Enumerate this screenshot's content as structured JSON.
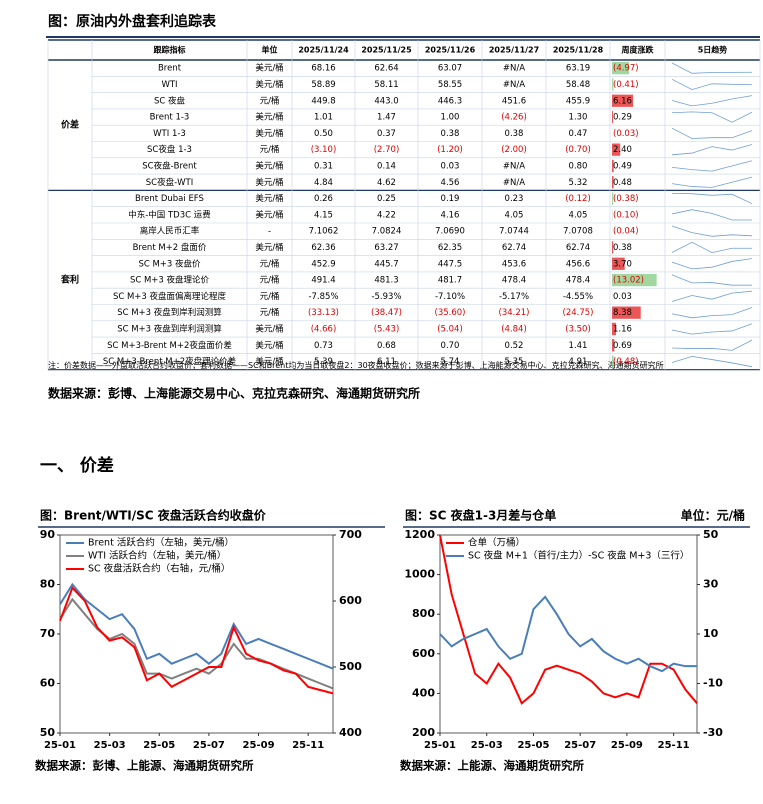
{
  "title": "图：原油内外盘套利追踪表",
  "table": {
    "headers": [
      "跟踪指标",
      "单位",
      "2025/11/24",
      "2025/11/25",
      "2025/11/26",
      "2025/11/27",
      "2025/11/28",
      "周度涨跌",
      "5日趋势"
    ],
    "groups": [
      {
        "name": "价差",
        "rows": [
          [
            "Brent",
            "美元/桶",
            "68.16",
            "62.64",
            "63.07",
            "#N/A",
            "63.19",
            "(4.97)"
          ],
          [
            "WTI",
            "美元/桶",
            "58.89",
            "58.11",
            "58.55",
            "#N/A",
            "58.48",
            "(0.41)"
          ],
          [
            "SC 夜盘",
            "元/桶",
            "449.8",
            "443.0",
            "446.3",
            "451.6",
            "455.9",
            "6.16"
          ],
          [
            "Brent 1-3",
            "美元/桶",
            "1.01",
            "1.47",
            "1.00",
            "(4.26)",
            "1.30",
            "0.29"
          ],
          [
            "WTI 1-3",
            "美元/桶",
            "0.50",
            "0.37",
            "0.38",
            "0.38",
            "0.47",
            "(0.03)"
          ],
          [
            "SC夜盘 1-3",
            "元/桶",
            "(3.10)",
            "(2.70)",
            "(1.20)",
            "(2.00)",
            "(0.70)",
            "2.40"
          ],
          [
            "SC夜盘-Brent",
            "美元/桶",
            "0.31",
            "0.14",
            "0.03",
            "#N/A",
            "0.80",
            "0.49"
          ],
          [
            "SC夜盘-WTI",
            "美元/桶",
            "4.84",
            "4.62",
            "4.56",
            "#N/A",
            "5.32",
            "0.48"
          ]
        ]
      },
      {
        "name": "套利",
        "rows": [
          [
            "Brent Dubai EFS",
            "美元/桶",
            "0.26",
            "0.25",
            "0.19",
            "0.23",
            "(0.12)",
            "(0.38)"
          ],
          [
            "中东-中国 TD3C 运费",
            "美元/桶",
            "4.15",
            "4.22",
            "4.16",
            "4.05",
            "4.05",
            "(0.10)"
          ],
          [
            "离岸人民币汇率",
            "-",
            "7.1062",
            "7.0824",
            "7.0690",
            "7.0744",
            "7.0708",
            "(0.04)"
          ],
          [
            "Brent M+2 盘面价",
            "美元/桶",
            "62.36",
            "63.27",
            "62.35",
            "62.74",
            "62.74",
            "0.38"
          ],
          [
            "SC M+3 夜盘价",
            "元/桶",
            "452.9",
            "445.7",
            "447.5",
            "453.6",
            "456.6",
            "3.70"
          ],
          [
            "SC M+3 夜盘理论价",
            "元/桶",
            "491.4",
            "481.3",
            "481.7",
            "478.4",
            "478.4",
            "(13.02)"
          ],
          [
            "SC M+3 夜盘面偏离理论程度",
            "元/桶",
            "-7.85%",
            "-5.93%",
            "-7.10%",
            "-5.17%",
            "-4.55%",
            "0.03"
          ],
          [
            "SC M+3 夜盘到岸利润测算",
            "元/桶",
            "(33.13)",
            "(38.47)",
            "(35.60)",
            "(34.21)",
            "(24.75)",
            "8.38"
          ],
          [
            "SC M+3 夜盘到岸利润测算",
            "美元/桶",
            "(4.66)",
            "(5.43)",
            "(5.04)",
            "(4.84)",
            "(3.50)",
            "1.16"
          ],
          [
            "SC M+3-Brent M+2夜盘面价差",
            "美元/桶",
            "0.73",
            "0.68",
            "0.70",
            "0.52",
            "1.41",
            "0.69"
          ],
          [
            "SC M+3-Brent M+2夜盘理论价差",
            "美元/桶",
            "5.39",
            "6.11",
            "5.74",
            "5.35",
            "4.91",
            "(0.48)"
          ]
        ]
      }
    ]
  },
  "note": "注：价差数据——外盘取活跃合约收盘价；套利数据——SC和Brent均为当日取夜盘2：30夜盘收盘价；数据来源于彭博、上海能源交易中心、克拉克森研究、海通期货研究所",
  "source": "数据来源：彭博、上海能源交易中心、克拉克森研究、海通期货研究所",
  "section": "一、 价差",
  "chart_data": [
    {
      "type": "line",
      "title": "图：Brent/WTI/SC 夜盘活跃合约收盘价",
      "x": [
        1,
        1.5,
        2,
        2.5,
        3,
        3.5,
        4,
        4.5,
        5,
        5.5,
        6,
        6.5,
        7,
        7.5,
        8,
        8.5,
        9,
        9.5,
        10,
        10.5,
        11,
        11.5,
        12
      ],
      "xlim": [
        1,
        12
      ],
      "xticks": [
        {
          "value": 1,
          "label": "25-01"
        },
        {
          "value": 3,
          "label": "25-03"
        },
        {
          "value": 5,
          "label": "25-05"
        },
        {
          "value": 7,
          "label": "25-07"
        },
        {
          "value": 9,
          "label": "25-09"
        },
        {
          "value": 11,
          "label": "25-11"
        }
      ],
      "ylim": [
        50,
        90
      ],
      "yticks": [
        50,
        60,
        70,
        80,
        90
      ],
      "y2lim": [
        400,
        700
      ],
      "y2ticks": [
        400,
        500,
        600,
        700
      ],
      "series": [
        {
          "name": "Brent 活跃合约（左轴，美元/桶）",
          "color": "#4a7ebb",
          "values": [
            76,
            80,
            77,
            75,
            73,
            74,
            71,
            65,
            66,
            64,
            65,
            66,
            64,
            66,
            72,
            68,
            69,
            68,
            67,
            66,
            65,
            64,
            63
          ]
        },
        {
          "name": "WTI 活跃合约（左轴，美元/桶）",
          "color": "#808080",
          "values": [
            73,
            77,
            74,
            71,
            69,
            70,
            68,
            62,
            62,
            61,
            62,
            63,
            62,
            64,
            68,
            65,
            65,
            64,
            63,
            62,
            61,
            60,
            59
          ]
        },
        {
          "name": "SC 夜盘活跃合约（右轴，元/桶）",
          "color": "#ff0000",
          "axis": "y2",
          "values": [
            570,
            620,
            600,
            560,
            540,
            545,
            530,
            480,
            490,
            470,
            480,
            490,
            500,
            500,
            560,
            520,
            510,
            505,
            495,
            490,
            470,
            465,
            460
          ]
        }
      ],
      "source": "数据来源：彭博、上能源、海通期货研究所"
    },
    {
      "type": "line",
      "title": "图：SC 夜盘1-3月差与仓单",
      "subtitle": "单位：元/桶",
      "x": [
        1,
        1.5,
        2,
        2.5,
        3,
        3.5,
        4,
        4.5,
        5,
        5.5,
        6,
        6.5,
        7,
        7.5,
        8,
        8.5,
        9,
        9.5,
        10,
        10.5,
        11,
        11.5,
        12
      ],
      "xlim": [
        1,
        12
      ],
      "xticks": [
        {
          "value": 1,
          "label": "25-01"
        },
        {
          "value": 3,
          "label": "25-03"
        },
        {
          "value": 5,
          "label": "25-05"
        },
        {
          "value": 7,
          "label": "25-07"
        },
        {
          "value": 9,
          "label": "25-09"
        },
        {
          "value": 11,
          "label": "25-11"
        }
      ],
      "ylim": [
        200,
        1200
      ],
      "yticks": [
        200,
        400,
        600,
        800,
        1000,
        1200
      ],
      "y2lim": [
        -30,
        50
      ],
      "y2ticks": [
        -30,
        -10,
        10,
        30,
        50
      ],
      "series": [
        {
          "name": "仓单（万桶）",
          "color": "#ff0000",
          "values": [
            1200,
            900,
            700,
            500,
            450,
            550,
            480,
            350,
            400,
            520,
            540,
            520,
            500,
            460,
            400,
            380,
            400,
            380,
            550,
            550,
            520,
            420,
            350
          ]
        },
        {
          "name": "SC 夜盘 M+1（首行/主力）-SC 夜盘 M+3（三行）",
          "color": "#4a7ebb",
          "axis": "y2",
          "values": [
            10,
            5,
            8,
            10,
            12,
            5,
            0,
            2,
            20,
            25,
            18,
            10,
            5,
            8,
            3,
            0,
            -2,
            0,
            -3,
            -5,
            -2,
            -3,
            -3
          ]
        }
      ],
      "source": "数据来源：上能源、海通期货研究所"
    }
  ]
}
